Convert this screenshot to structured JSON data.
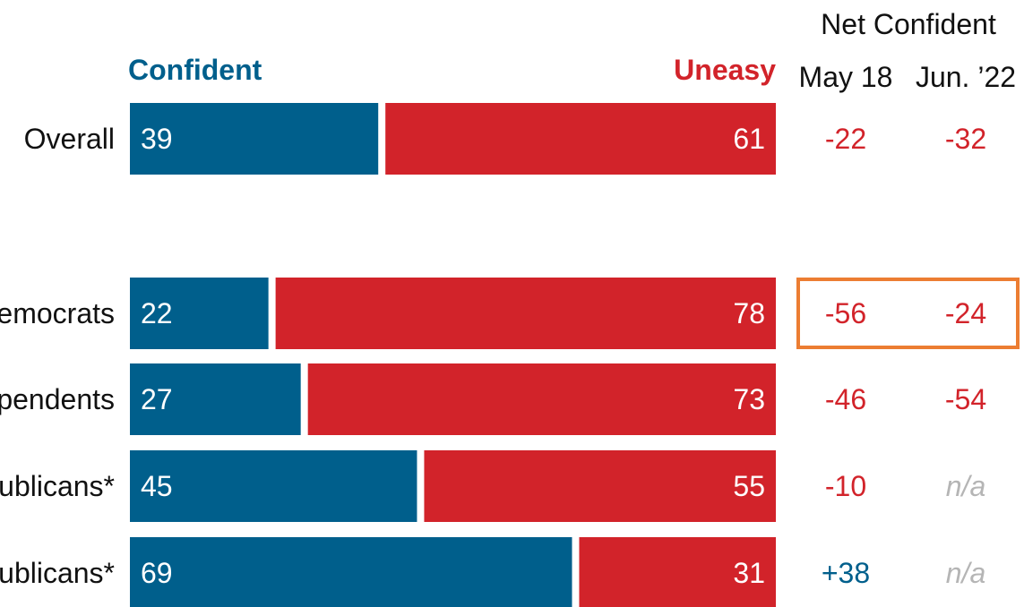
{
  "chart_data": {
    "type": "bar",
    "orientation": "horizontal",
    "stacked": true,
    "percent_scale": [
      0,
      100
    ],
    "legend": {
      "confident": "Confident",
      "uneasy": "Uneasy"
    },
    "net_header": "Net Confident",
    "net_columns": [
      "May 18",
      "Jun. ’22"
    ],
    "categories": [
      "Overall",
      "emocrats",
      "pendents",
      "ublicans*",
      "ublicans*"
    ],
    "series": [
      {
        "name": "Confident",
        "values": [
          39,
          22,
          27,
          45,
          69
        ]
      },
      {
        "name": "Uneasy",
        "values": [
          61,
          78,
          73,
          55,
          31
        ]
      }
    ],
    "net": [
      [
        "-22",
        "-32"
      ],
      [
        "-56",
        "-24"
      ],
      [
        "-46",
        "-54"
      ],
      [
        "-10",
        "n/a"
      ],
      [
        "+38",
        "n/a"
      ]
    ],
    "highlighted_row": 1
  },
  "colors": {
    "confident": "#005f8c",
    "uneasy": "#d2232a",
    "na": "#b5b5b5",
    "highlight": "#ec7d32",
    "text": "#111111"
  }
}
